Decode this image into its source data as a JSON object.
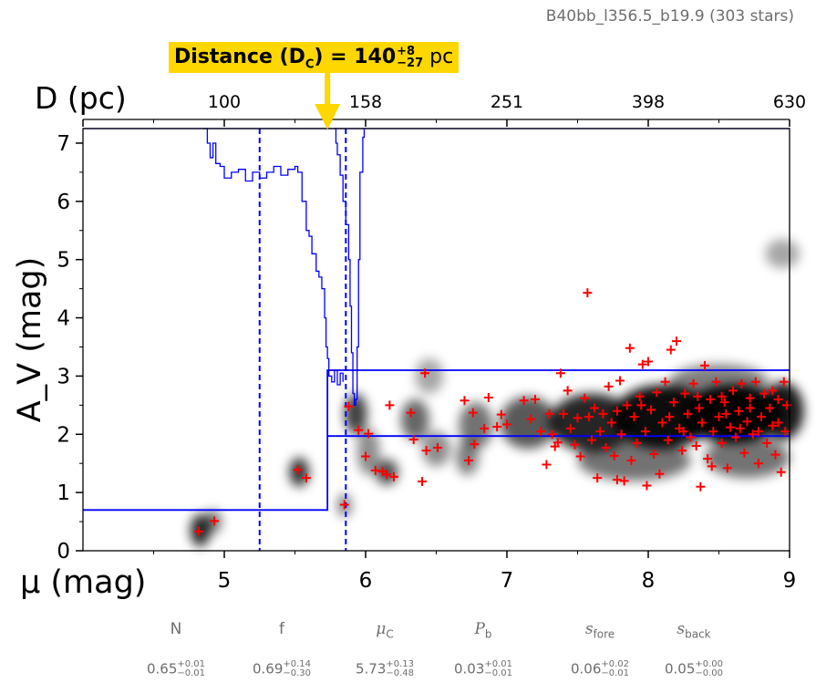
{
  "field_title": "B40bb_l356.5_b19.9 (303 stars)",
  "callout": {
    "prefix": "Distance (D",
    "sub": "C",
    "mid": ") = 140",
    "sup": "+8",
    "low": "−27",
    "unit": " pc"
  },
  "colors": {
    "step": "#0000ff",
    "stars": "#ff0000",
    "callout_bg": "#ffd700",
    "dashed": "#0000ff"
  },
  "chart_data": {
    "type": "scatter",
    "xlabel": "μ (mag)",
    "ylabel": "A_V (mag)",
    "top_axis_label": "D (pc)",
    "xlim": [
      4,
      9
    ],
    "ylim": [
      0,
      7.25
    ],
    "x_ticks": [
      "5",
      "6",
      "7",
      "8",
      "9"
    ],
    "x_tick_values": [
      5,
      6,
      7,
      8,
      9
    ],
    "y_ticks": [
      "0",
      "1",
      "2",
      "3",
      "4",
      "5",
      "6",
      "7"
    ],
    "y_tick_values": [
      0,
      1,
      2,
      3,
      4,
      5,
      6,
      7
    ],
    "top_ticks": [
      "100",
      "158",
      "251",
      "398",
      "630"
    ],
    "top_tick_mu": [
      5,
      6,
      7,
      8,
      9
    ],
    "dashed_lines_mu": [
      5.25,
      5.86
    ],
    "model_step": {
      "foreground_av": 0.7,
      "mu_cloud": 5.73,
      "background_av_low": 1.97,
      "background_av_high": 3.1
    },
    "probability_curve": [
      [
        5.78,
        7.25
      ],
      [
        5.79,
        7.0
      ],
      [
        5.8,
        6.8
      ],
      [
        5.82,
        6.45
      ],
      [
        5.84,
        6.0
      ],
      [
        5.86,
        5.6
      ],
      [
        5.88,
        5.0
      ],
      [
        5.89,
        4.2
      ],
      [
        5.9,
        3.4
      ],
      [
        5.91,
        2.7
      ],
      [
        5.92,
        2.5
      ],
      [
        5.93,
        2.6
      ],
      [
        5.94,
        3.5
      ],
      [
        5.95,
        5.0
      ],
      [
        5.96,
        6.5
      ],
      [
        5.98,
        7.1
      ],
      [
        5.99,
        7.25
      ]
    ],
    "upper_curve": [
      [
        4.85,
        7.25
      ],
      [
        4.88,
        7.0
      ],
      [
        4.9,
        6.75
      ],
      [
        4.92,
        7.0
      ],
      [
        4.94,
        6.65
      ],
      [
        4.97,
        6.6
      ],
      [
        5.0,
        6.4
      ],
      [
        5.05,
        6.5
      ],
      [
        5.1,
        6.55
      ],
      [
        5.15,
        6.35
      ],
      [
        5.2,
        6.5
      ],
      [
        5.25,
        6.4
      ],
      [
        5.3,
        6.5
      ],
      [
        5.35,
        6.6
      ],
      [
        5.4,
        6.45
      ],
      [
        5.45,
        6.55
      ],
      [
        5.5,
        6.6
      ],
      [
        5.52,
        6.5
      ],
      [
        5.55,
        6.0
      ],
      [
        5.58,
        5.5
      ],
      [
        5.6,
        5.4
      ],
      [
        5.62,
        5.1
      ],
      [
        5.65,
        4.8
      ],
      [
        5.67,
        4.7
      ],
      [
        5.69,
        4.5
      ],
      [
        5.71,
        4.0
      ],
      [
        5.72,
        3.5
      ],
      [
        5.73,
        3.3
      ],
      [
        5.74,
        3.0
      ],
      [
        5.76,
        2.9
      ],
      [
        5.78,
        3.1
      ],
      [
        5.8,
        2.85
      ],
      [
        5.82,
        3.05
      ],
      [
        5.84,
        2.9
      ]
    ],
    "stars": [
      [
        4.82,
        0.33
      ],
      [
        4.93,
        0.51
      ],
      [
        5.52,
        1.39
      ],
      [
        5.58,
        1.25
      ],
      [
        5.85,
        0.79
      ],
      [
        5.88,
        2.48
      ],
      [
        5.95,
        2.07
      ],
      [
        6.0,
        1.62
      ],
      [
        6.02,
        2.01
      ],
      [
        6.07,
        1.38
      ],
      [
        6.12,
        1.36
      ],
      [
        6.15,
        1.31
      ],
      [
        6.17,
        2.5
      ],
      [
        6.2,
        1.27
      ],
      [
        6.32,
        2.37
      ],
      [
        6.34,
        1.91
      ],
      [
        6.4,
        1.19
      ],
      [
        6.42,
        3.05
      ],
      [
        6.43,
        1.72
      ],
      [
        6.51,
        1.77
      ],
      [
        6.7,
        2.58
      ],
      [
        6.73,
        1.55
      ],
      [
        6.76,
        2.37
      ],
      [
        6.77,
        1.83
      ],
      [
        6.84,
        2.1
      ],
      [
        6.87,
        2.63
      ],
      [
        6.93,
        2.13
      ],
      [
        6.96,
        2.34
      ],
      [
        7.0,
        2.17
      ],
      [
        7.12,
        2.58
      ],
      [
        7.17,
        2.26
      ],
      [
        7.2,
        2.6
      ],
      [
        7.24,
        2.05
      ],
      [
        7.28,
        1.48
      ],
      [
        7.3,
        2.35
      ],
      [
        7.32,
        2.0
      ],
      [
        7.34,
        1.79
      ],
      [
        7.36,
        1.86
      ],
      [
        7.38,
        3.05
      ],
      [
        7.4,
        2.35
      ],
      [
        7.43,
        2.75
      ],
      [
        7.45,
        2.1
      ],
      [
        7.48,
        1.82
      ],
      [
        7.5,
        2.28
      ],
      [
        7.52,
        1.62
      ],
      [
        7.55,
        2.62
      ],
      [
        7.57,
        4.43
      ],
      [
        7.58,
        2.3
      ],
      [
        7.6,
        1.9
      ],
      [
        7.62,
        2.45
      ],
      [
        7.64,
        1.25
      ],
      [
        7.66,
        2.05
      ],
      [
        7.68,
        2.35
      ],
      [
        7.7,
        1.77
      ],
      [
        7.72,
        2.82
      ],
      [
        7.74,
        2.2
      ],
      [
        7.76,
        1.63
      ],
      [
        7.78,
        2.4
      ],
      [
        7.8,
        2.92
      ],
      [
        7.81,
        2.0
      ],
      [
        7.83,
        1.2
      ],
      [
        7.85,
        2.5
      ],
      [
        7.87,
        3.48
      ],
      [
        7.88,
        1.55
      ],
      [
        7.9,
        2.3
      ],
      [
        7.92,
        1.85
      ],
      [
        7.94,
        2.65
      ],
      [
        7.96,
        3.2
      ],
      [
        7.98,
        2.05
      ],
      [
        8.0,
        3.25
      ],
      [
        8.02,
        2.42
      ],
      [
        8.04,
        1.66
      ],
      [
        8.06,
        2.72
      ],
      [
        8.08,
        1.32
      ],
      [
        8.1,
        2.2
      ],
      [
        8.12,
        2.9
      ],
      [
        8.14,
        1.9
      ],
      [
        8.16,
        3.45
      ],
      [
        8.18,
        2.55
      ],
      [
        8.2,
        3.6
      ],
      [
        8.22,
        2.1
      ],
      [
        8.24,
        1.72
      ],
      [
        8.26,
        2.7
      ],
      [
        8.28,
        2.35
      ],
      [
        8.3,
        1.95
      ],
      [
        8.32,
        2.87
      ],
      [
        8.34,
        1.8
      ],
      [
        8.36,
        2.45
      ],
      [
        8.38,
        2.2
      ],
      [
        8.4,
        3.18
      ],
      [
        8.42,
        1.58
      ],
      [
        8.44,
        2.6
      ],
      [
        8.46,
        2.05
      ],
      [
        8.48,
        2.9
      ],
      [
        8.5,
        2.3
      ],
      [
        8.52,
        1.85
      ],
      [
        8.54,
        2.55
      ],
      [
        8.56,
        1.42
      ],
      [
        8.58,
        2.12
      ],
      [
        8.6,
        2.75
      ],
      [
        8.62,
        1.95
      ],
      [
        8.64,
        2.4
      ],
      [
        8.66,
        2.87
      ],
      [
        8.68,
        1.68
      ],
      [
        8.7,
        2.22
      ],
      [
        8.72,
        2.62
      ],
      [
        8.74,
        2.0
      ],
      [
        8.76,
        2.9
      ],
      [
        8.78,
        1.5
      ],
      [
        8.8,
        2.3
      ],
      [
        8.82,
        2.7
      ],
      [
        8.84,
        1.85
      ],
      [
        8.86,
        2.45
      ],
      [
        8.88,
        2.15
      ],
      [
        8.9,
        1.65
      ],
      [
        8.92,
        2.6
      ],
      [
        8.94,
        1.35
      ],
      [
        8.96,
        2.9
      ],
      [
        8.97,
        2.05
      ],
      [
        8.98,
        2.5
      ],
      [
        8.45,
        1.45
      ],
      [
        8.37,
        1.1
      ],
      [
        7.99,
        1.12
      ],
      [
        7.78,
        1.22
      ],
      [
        8.55,
        2.35
      ],
      [
        8.72,
        2.45
      ],
      [
        8.88,
        2.75
      ],
      [
        8.35,
        2.65
      ],
      [
        8.15,
        2.3
      ],
      [
        7.95,
        2.5
      ],
      [
        8.65,
        2.1
      ],
      [
        8.52,
        2.65
      ],
      [
        8.25,
        2.05
      ],
      [
        8.78,
        2.05
      ],
      [
        8.92,
        2.2
      ]
    ],
    "density_blobs": [
      [
        4.83,
        0.35,
        0.07,
        0.28,
        0.85
      ],
      [
        4.92,
        0.5,
        0.06,
        0.2,
        0.55
      ],
      [
        5.53,
        1.35,
        0.07,
        0.25,
        0.8
      ],
      [
        5.85,
        0.78,
        0.05,
        0.2,
        0.5
      ],
      [
        6.15,
        1.35,
        0.08,
        0.22,
        0.7
      ],
      [
        6.02,
        1.7,
        0.08,
        0.4,
        0.45
      ],
      [
        5.93,
        2.35,
        0.08,
        0.35,
        0.75
      ],
      [
        6.35,
        2.25,
        0.1,
        0.35,
        0.6
      ],
      [
        6.45,
        3.0,
        0.1,
        0.3,
        0.35
      ],
      [
        6.5,
        1.75,
        0.1,
        0.3,
        0.45
      ],
      [
        6.78,
        2.15,
        0.12,
        0.4,
        0.55
      ],
      [
        6.72,
        1.6,
        0.08,
        0.3,
        0.5
      ],
      [
        7.15,
        2.2,
        0.2,
        0.45,
        0.65
      ],
      [
        7.6,
        2.2,
        0.3,
        0.5,
        0.85
      ],
      [
        8.1,
        2.3,
        0.35,
        0.55,
        0.95
      ],
      [
        8.6,
        2.35,
        0.35,
        0.5,
        1.0
      ],
      [
        8.95,
        2.4,
        0.15,
        0.5,
        0.9
      ],
      [
        7.9,
        1.55,
        0.4,
        0.35,
        0.55
      ],
      [
        8.7,
        1.6,
        0.3,
        0.35,
        0.55
      ],
      [
        8.95,
        5.1,
        0.12,
        0.25,
        0.35
      ],
      [
        8.5,
        2.9,
        0.35,
        0.3,
        0.5
      ]
    ]
  },
  "params": [
    {
      "name": "N",
      "value": "0.65",
      "plus": "+0.01",
      "minus": "−0.01"
    },
    {
      "name": "f",
      "value": "0.69",
      "plus": "+0.14",
      "minus": "−0.30"
    },
    {
      "name": "μ",
      "name_sub": "C",
      "value": "5.73",
      "plus": "+0.13",
      "minus": "−0.48"
    },
    {
      "name": "P",
      "name_sub": "b",
      "value": "0.03",
      "plus": "+0.01",
      "minus": "−0.01"
    },
    {
      "name": "s",
      "name_sub": "fore",
      "value": "0.06",
      "plus": "+0.02",
      "minus": "−0.01"
    },
    {
      "name": "s",
      "name_sub": "back",
      "value": "0.05",
      "plus": "+0.00",
      "minus": "−0.00"
    }
  ]
}
